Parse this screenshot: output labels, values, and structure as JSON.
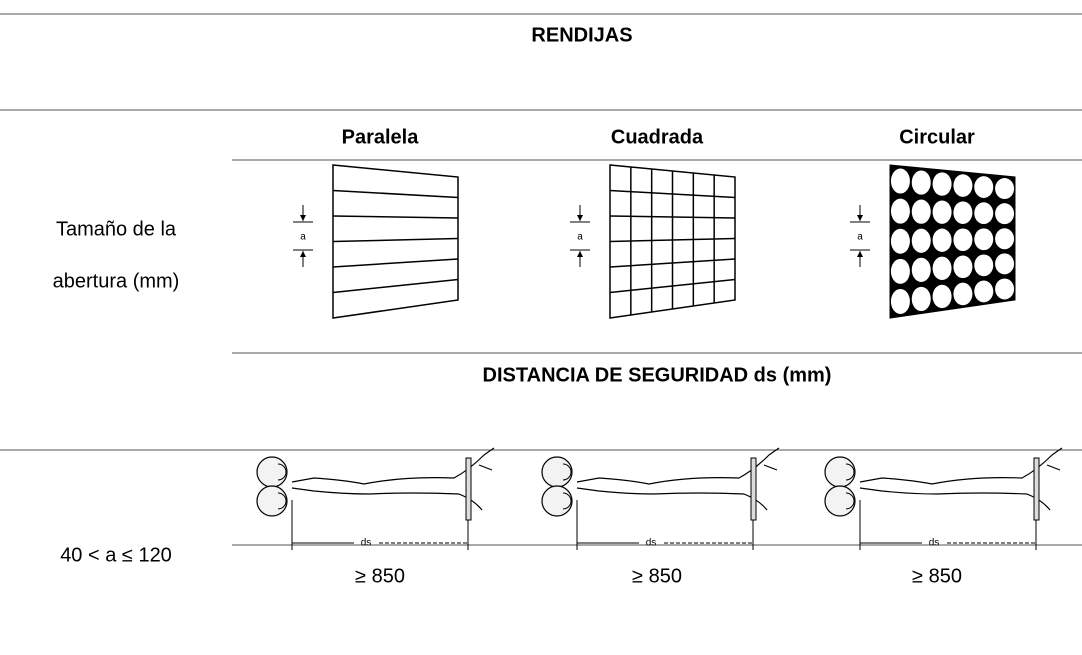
{
  "table": {
    "title": "RENDIJAS",
    "columns": [
      "Paralela",
      "Cuadrada",
      "Circular"
    ],
    "row_label": [
      "Tamaño de la",
      "abertura (mm)"
    ],
    "distance_header": "DISTANCIA DE SEGURIDAD ds (mm)",
    "opening": "40 < a ≤ 120",
    "distances": [
      "≥ 850",
      "≥ 850",
      "≥ 850"
    ]
  },
  "figures": {
    "aperture_label": "a",
    "distance_label": "ds"
  }
}
